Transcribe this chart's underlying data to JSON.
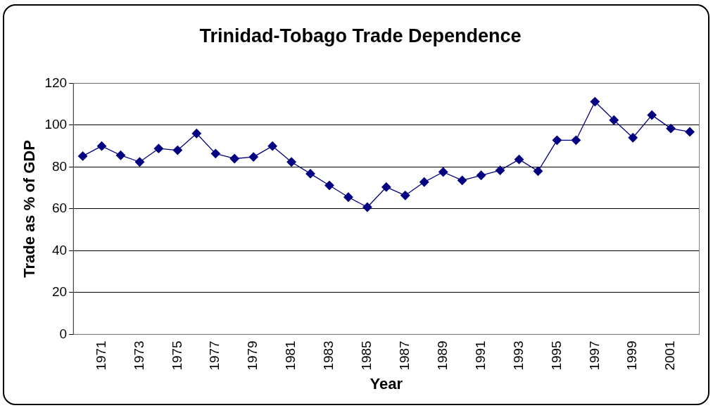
{
  "chart_data": {
    "type": "line",
    "title": "Trinidad-Tobago Trade Dependence",
    "xlabel": "Year",
    "ylabel": "Trade as % of GDP",
    "categories": [
      null,
      "1971",
      null,
      "1973",
      null,
      "1975",
      null,
      "1977",
      null,
      "1979",
      null,
      "1981",
      null,
      "1983",
      null,
      "1985",
      null,
      "1987",
      null,
      "1989",
      null,
      "1991",
      null,
      "1993",
      null,
      "1995",
      null,
      "1997",
      null,
      "1999",
      null,
      "2001",
      null
    ],
    "series": [
      {
        "color": "#000080",
        "values": [
          85.2,
          90,
          85.6,
          82.4,
          88.8,
          88,
          96,
          86.4,
          84,
          84.8,
          90,
          82.4,
          76.8,
          71.2,
          65.6,
          60.8,
          70.4,
          66.4,
          72.8,
          77.6,
          73.6,
          76,
          78.4,
          83.6,
          78,
          92.8,
          92.8,
          111.2,
          102.4,
          94,
          104.8,
          98.4,
          96.8
        ]
      }
    ],
    "ylim": [
      0,
      120
    ],
    "yticks": [
      0,
      20,
      40,
      60,
      80,
      100,
      120
    ],
    "grid": "y",
    "legend": false,
    "marker": "diamond",
    "line_style": "solid"
  }
}
